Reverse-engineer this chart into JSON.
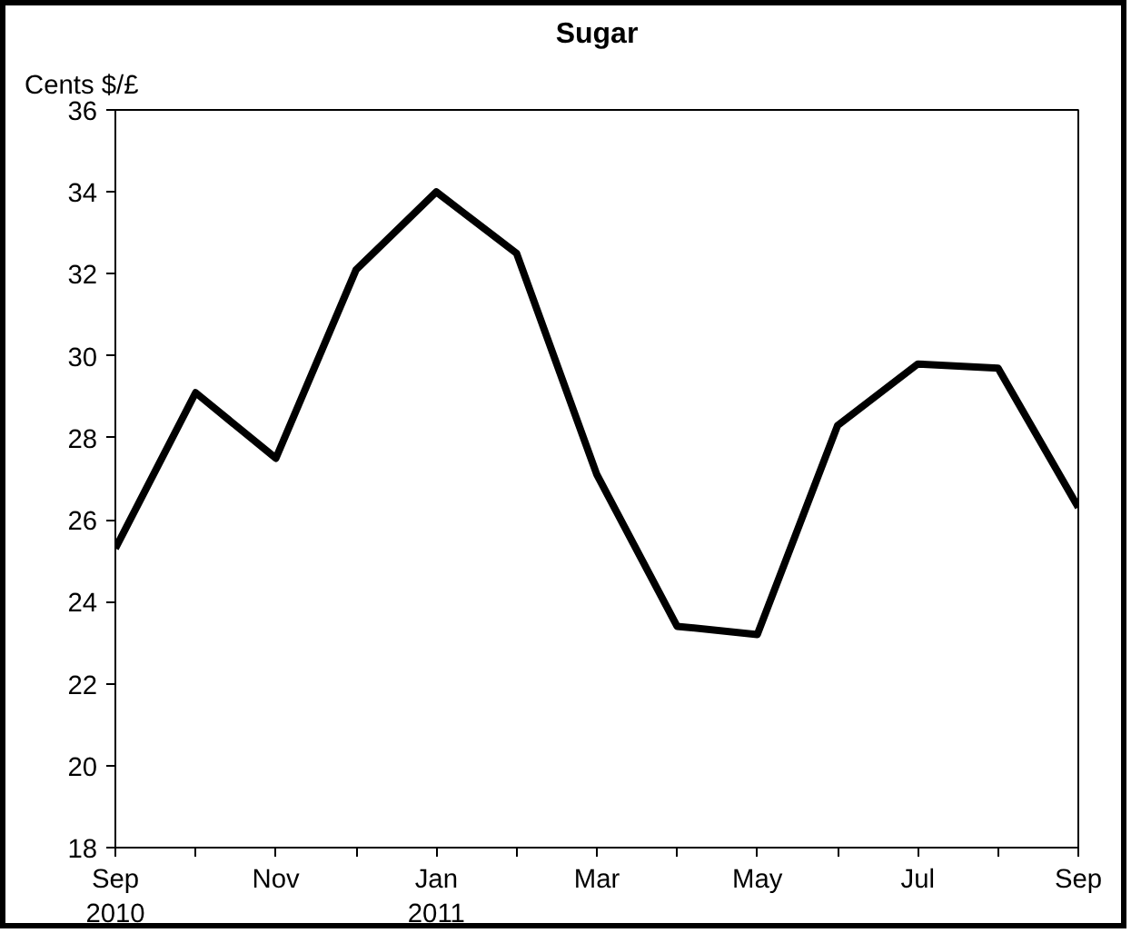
{
  "chart_data": {
    "type": "line",
    "title": "Sugar",
    "ylabel": "Cents $/£",
    "categories": [
      "Sep\n2010",
      null,
      "Nov",
      null,
      "Jan\n2011",
      null,
      "Mar",
      null,
      "May",
      null,
      "Jul",
      null,
      "Sep"
    ],
    "series": [
      {
        "color": "#000000",
        "values": [
          25.3,
          29.1,
          27.5,
          32.1,
          34.0,
          32.5,
          27.1,
          23.4,
          23.2,
          28.3,
          29.8,
          29.7,
          26.3
        ]
      }
    ],
    "ylim": [
      18,
      36
    ],
    "yticks": [
      18,
      20,
      22,
      24,
      26,
      28,
      30,
      32,
      34,
      36
    ],
    "grid": false,
    "marker": "none",
    "line_style": "solid"
  }
}
